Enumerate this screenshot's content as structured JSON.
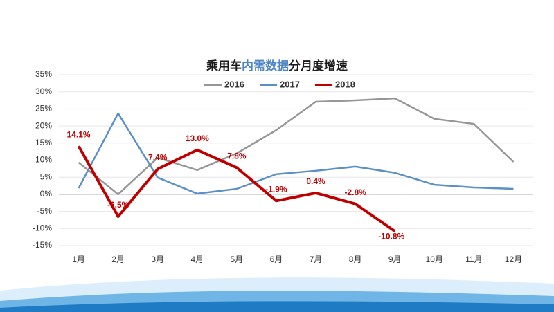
{
  "chart_data": {
    "type": "line",
    "title": [
      "乘用车",
      "内需数据",
      "分月度增速"
    ],
    "title_colors": [
      "#1a1a1a",
      "#4f86c6",
      "#1a1a1a"
    ],
    "categories": [
      "1月",
      "2月",
      "3月",
      "4月",
      "5月",
      "6月",
      "7月",
      "8月",
      "9月",
      "10月",
      "11月",
      "12月"
    ],
    "series": [
      {
        "name": "2016",
        "color": "#969696",
        "values": [
          9.3,
          0,
          10.7,
          7.1,
          12,
          18.8,
          27.1,
          27.5,
          28.1,
          22.1,
          20.6,
          9.5
        ]
      },
      {
        "name": "2017",
        "color": "#5b8fc7",
        "values": [
          1.8,
          23.7,
          4.9,
          0.2,
          1.6,
          5.9,
          6.9,
          8.1,
          6.3,
          2.8,
          2.0,
          1.6
        ]
      },
      {
        "name": "2018",
        "color": "#c00000",
        "values": [
          14.1,
          -6.5,
          7.4,
          13.0,
          7.8,
          -1.9,
          0.4,
          -2.8,
          -10.8,
          null,
          null,
          null
        ],
        "value_labels": [
          "14.1%",
          "-6.5%",
          "7.4%",
          "13.0%",
          "7.8%",
          "-1.9%",
          "0.4%",
          "-2.8%",
          "-10.8%",
          null,
          null,
          null
        ]
      }
    ],
    "ylim": [
      -15,
      35
    ],
    "yticks": [
      {
        "value": -15,
        "label": "-15%"
      },
      {
        "value": -10,
        "label": "-10%"
      },
      {
        "value": -5,
        "label": "-5%"
      },
      {
        "value": 0,
        "label": "0%"
      },
      {
        "value": 5,
        "label": "5%"
      },
      {
        "value": 10,
        "label": "10%"
      },
      {
        "value": 15,
        "label": "15%"
      },
      {
        "value": 20,
        "label": "20%"
      },
      {
        "value": 25,
        "label": "25%"
      },
      {
        "value": 30,
        "label": "30%"
      },
      {
        "value": 35,
        "label": "35%"
      }
    ],
    "grid": true,
    "legend": "top"
  }
}
